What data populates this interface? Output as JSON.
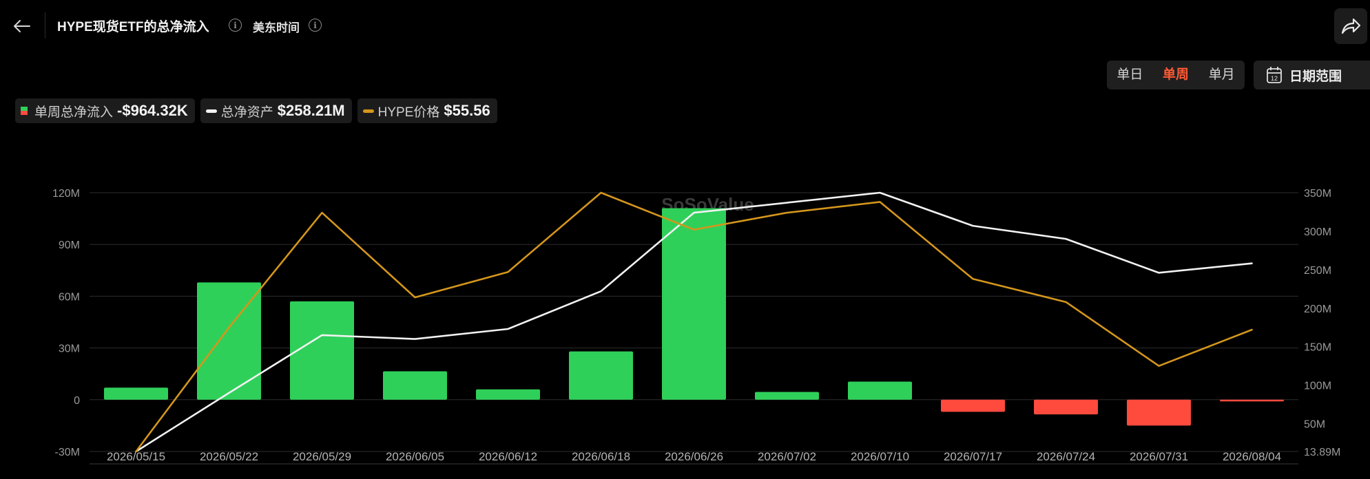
{
  "header": {
    "title": "HYPE现货ETF的总净流入",
    "timezone_label": "美东时间",
    "info_glyph": "i",
    "back_icon": "arrow-left-icon",
    "share_icon": "share-icon"
  },
  "toolbar": {
    "periods": [
      {
        "label": "单日",
        "active": false
      },
      {
        "label": "单周",
        "active": true
      },
      {
        "label": "单月",
        "active": false
      }
    ],
    "date_range_label": "日期范围",
    "date_range_icon": "calendar-icon",
    "calendar_day": "12",
    "active_color": "#ff5a36"
  },
  "legend": [
    {
      "label": "单周总净流入",
      "value": "-$964.32K",
      "swatch": "bar-green-red"
    },
    {
      "label": "总净资产",
      "value": "$258.21M",
      "swatch": "line-white"
    },
    {
      "label": "HYPE价格",
      "value": "$55.56",
      "swatch": "line-gold"
    }
  ],
  "colors": {
    "positive": "#2fd05a",
    "negative": "#ff4a3e",
    "net_assets_line": "#f2f2f2",
    "price_line": "#d4961c",
    "grid": "#2e2e2e",
    "background": "#000000"
  },
  "watermark": "SoSoValue",
  "chart_data": {
    "type": "bar",
    "categories": [
      "2026/05/15",
      "2026/05/22",
      "2026/05/29",
      "2026/06/05",
      "2026/06/12",
      "2026/06/18",
      "2026/06/26",
      "2026/07/02",
      "2026/07/10",
      "2026/07/17",
      "2026/07/24",
      "2026/07/31",
      "2026/08/04"
    ],
    "left_axis": {
      "ticks": [
        -30,
        0,
        30,
        60,
        90,
        120
      ],
      "tick_labels": [
        "-30M",
        "0",
        "30M",
        "60M",
        "90M",
        "120M"
      ],
      "ylim": [
        -30,
        120
      ],
      "unit": "M"
    },
    "right_axis": {
      "ticks": [
        13.89,
        50,
        100,
        150,
        200,
        250,
        300,
        350
      ],
      "tick_labels": [
        "13.89M",
        "50M",
        "100M",
        "150M",
        "200M",
        "250M",
        "300M",
        "350M"
      ],
      "ylim": [
        13.89,
        350
      ],
      "unit": "M"
    },
    "series": [
      {
        "name": "单周总净流入",
        "type": "bar",
        "axis": "left",
        "values": [
          7,
          68,
          57,
          16.5,
          6,
          28,
          111,
          4.5,
          10.5,
          -7,
          -8.5,
          -15,
          -0.96
        ]
      },
      {
        "name": "总净资产",
        "type": "line",
        "axis": "right",
        "values": [
          13.89,
          90,
          165,
          160,
          173,
          222,
          324,
          337,
          350,
          307,
          290,
          246,
          258.21
        ]
      },
      {
        "name": "HYPE价格",
        "type": "line",
        "axis": "right",
        "values": [
          13.89,
          175,
          324,
          214,
          247,
          350,
          302,
          324,
          338,
          238,
          208,
          125,
          172
        ]
      }
    ],
    "grid": true,
    "legend_position": "top-left"
  }
}
